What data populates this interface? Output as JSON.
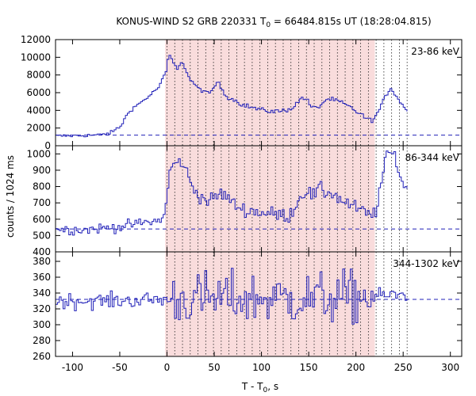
{
  "chart_data": {
    "type": "line",
    "title": {
      "prefix": "KONUS-WIND S2 GRB 220331 T",
      "sub": "0",
      "suffix": " = 66484.815s UT (18:28:04.815)"
    },
    "ylabel": "counts / 1024 ms",
    "xlabel": {
      "prefix": "T - T",
      "sub": "0",
      "suffix": ", s"
    },
    "xlim": [
      -118,
      312
    ],
    "x_ticks": [
      -100,
      -50,
      0,
      50,
      100,
      150,
      200,
      250,
      300
    ],
    "x_tick_labels": [
      "-100",
      "-50",
      "0",
      "50",
      "100",
      "150",
      "200",
      "250",
      "300"
    ],
    "shaded_interval": [
      -2,
      220
    ],
    "shade_color": "#f9dcdc",
    "series_color": "#2020b8",
    "background_dashed_color": "#2020b8",
    "boundary_lines": [
      0,
      8.2,
      16.4,
      24.6,
      32.8,
      41,
      49.2,
      57.4,
      65.6,
      73.8,
      82,
      90.2,
      98.4,
      106.6,
      114.8,
      123,
      131.2,
      139.4,
      147.6,
      155.8,
      164,
      172.2,
      180.4,
      188.6,
      196.8,
      205,
      213.2,
      221.4,
      229.6,
      237.8,
      246,
      254.2
    ],
    "panels": [
      {
        "label": "23-86 keV",
        "ylim": [
          0,
          12000
        ],
        "y_ticks": [
          0,
          2000,
          4000,
          6000,
          8000,
          10000,
          12000
        ],
        "y_tick_labels": [
          "0",
          "2000",
          "4000",
          "6000",
          "8000",
          "10000",
          "12000"
        ],
        "background": 1200,
        "noise": 100,
        "x_start": -118,
        "x_end": 254,
        "points": [
          [
            -118,
            1100
          ],
          [
            -90,
            1150
          ],
          [
            -70,
            1250
          ],
          [
            -60,
            1500
          ],
          [
            -50,
            2200
          ],
          [
            -45,
            3200
          ],
          [
            -40,
            4000
          ],
          [
            -30,
            4800
          ],
          [
            -20,
            5600
          ],
          [
            -10,
            6600
          ],
          [
            -5,
            7600
          ],
          [
            -2,
            8400
          ],
          [
            0,
            9700
          ],
          [
            3,
            10200
          ],
          [
            6,
            9300
          ],
          [
            10,
            8500
          ],
          [
            13,
            9600
          ],
          [
            17,
            9200
          ],
          [
            22,
            7700
          ],
          [
            27,
            7100
          ],
          [
            32,
            6400
          ],
          [
            38,
            6300
          ],
          [
            43,
            5700
          ],
          [
            47,
            6300
          ],
          [
            52,
            7200
          ],
          [
            56,
            6600
          ],
          [
            62,
            5600
          ],
          [
            70,
            5200
          ],
          [
            80,
            4600
          ],
          [
            90,
            4300
          ],
          [
            100,
            4000
          ],
          [
            110,
            3900
          ],
          [
            120,
            3900
          ],
          [
            130,
            4200
          ],
          [
            137,
            4800
          ],
          [
            142,
            5500
          ],
          [
            146,
            5300
          ],
          [
            152,
            4400
          ],
          [
            158,
            4200
          ],
          [
            165,
            5000
          ],
          [
            170,
            5300
          ],
          [
            178,
            5100
          ],
          [
            185,
            4800
          ],
          [
            195,
            4200
          ],
          [
            205,
            3500
          ],
          [
            212,
            2900
          ],
          [
            218,
            3000
          ],
          [
            225,
            4300
          ],
          [
            230,
            5600
          ],
          [
            236,
            6500
          ],
          [
            242,
            5600
          ],
          [
            248,
            4600
          ],
          [
            254,
            4000
          ]
        ]
      },
      {
        "label": "86-344 keV",
        "ylim": [
          400,
          1050
        ],
        "y_ticks": [
          400,
          500,
          600,
          700,
          800,
          900,
          1000
        ],
        "y_tick_labels": [
          "400",
          "500",
          "600",
          "700",
          "800",
          "900",
          "1000"
        ],
        "background": 540,
        "noise": 16,
        "x_start": -118,
        "x_end": 254,
        "points": [
          [
            -118,
            540
          ],
          [
            -90,
            535
          ],
          [
            -70,
            545
          ],
          [
            -50,
            555
          ],
          [
            -40,
            565
          ],
          [
            -25,
            580
          ],
          [
            -10,
            590
          ],
          [
            -4,
            620
          ],
          [
            -1,
            740
          ],
          [
            2,
            880
          ],
          [
            5,
            950
          ],
          [
            9,
            930
          ],
          [
            14,
            960
          ],
          [
            19,
            900
          ],
          [
            24,
            820
          ],
          [
            30,
            770
          ],
          [
            36,
            730
          ],
          [
            45,
            710
          ],
          [
            55,
            760
          ],
          [
            62,
            740
          ],
          [
            70,
            690
          ],
          [
            80,
            660
          ],
          [
            90,
            650
          ],
          [
            100,
            640
          ],
          [
            115,
            630
          ],
          [
            128,
            620
          ],
          [
            137,
            700
          ],
          [
            142,
            760
          ],
          [
            148,
            770
          ],
          [
            155,
            740
          ],
          [
            160,
            790
          ],
          [
            165,
            760
          ],
          [
            172,
            770
          ],
          [
            180,
            730
          ],
          [
            192,
            690
          ],
          [
            205,
            650
          ],
          [
            215,
            620
          ],
          [
            220,
            650
          ],
          [
            225,
            790
          ],
          [
            230,
            960
          ],
          [
            234,
            1010
          ],
          [
            240,
            990
          ],
          [
            245,
            880
          ],
          [
            250,
            800
          ],
          [
            254,
            790
          ]
        ]
      },
      {
        "label": "344-1302 keV",
        "ylim": [
          260,
          392
        ],
        "y_ticks": [
          260,
          280,
          300,
          320,
          340,
          360,
          380
        ],
        "y_tick_labels": [
          "260",
          "280",
          "300",
          "320",
          "340",
          "360",
          "380"
        ],
        "background": 332,
        "noise": 5,
        "x_start": -118,
        "x_end": 254,
        "points": [
          [
            -118,
            330
          ],
          [
            -60,
            330
          ],
          [
            0,
            332
          ],
          [
            60,
            333
          ],
          [
            120,
            333
          ],
          [
            180,
            334
          ],
          [
            220,
            336
          ],
          [
            254,
            338
          ]
        ]
      }
    ]
  }
}
